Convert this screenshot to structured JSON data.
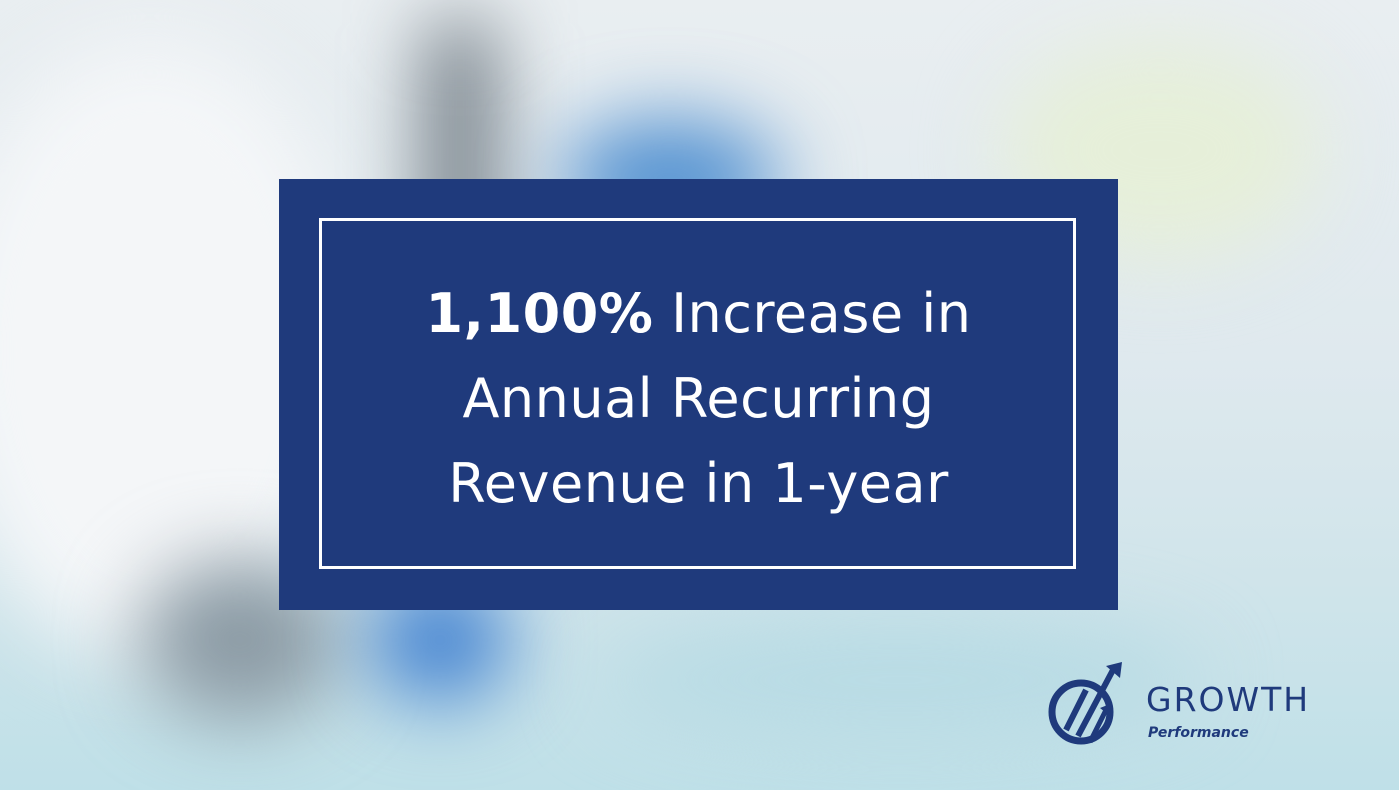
{
  "headline": {
    "bold": "1,100%",
    "line1": "Increase in",
    "line2": "Annual Recurring",
    "line3": "Revenue in 1-year"
  },
  "logo": {
    "name": "GROWTH",
    "tagline": "Performance"
  }
}
